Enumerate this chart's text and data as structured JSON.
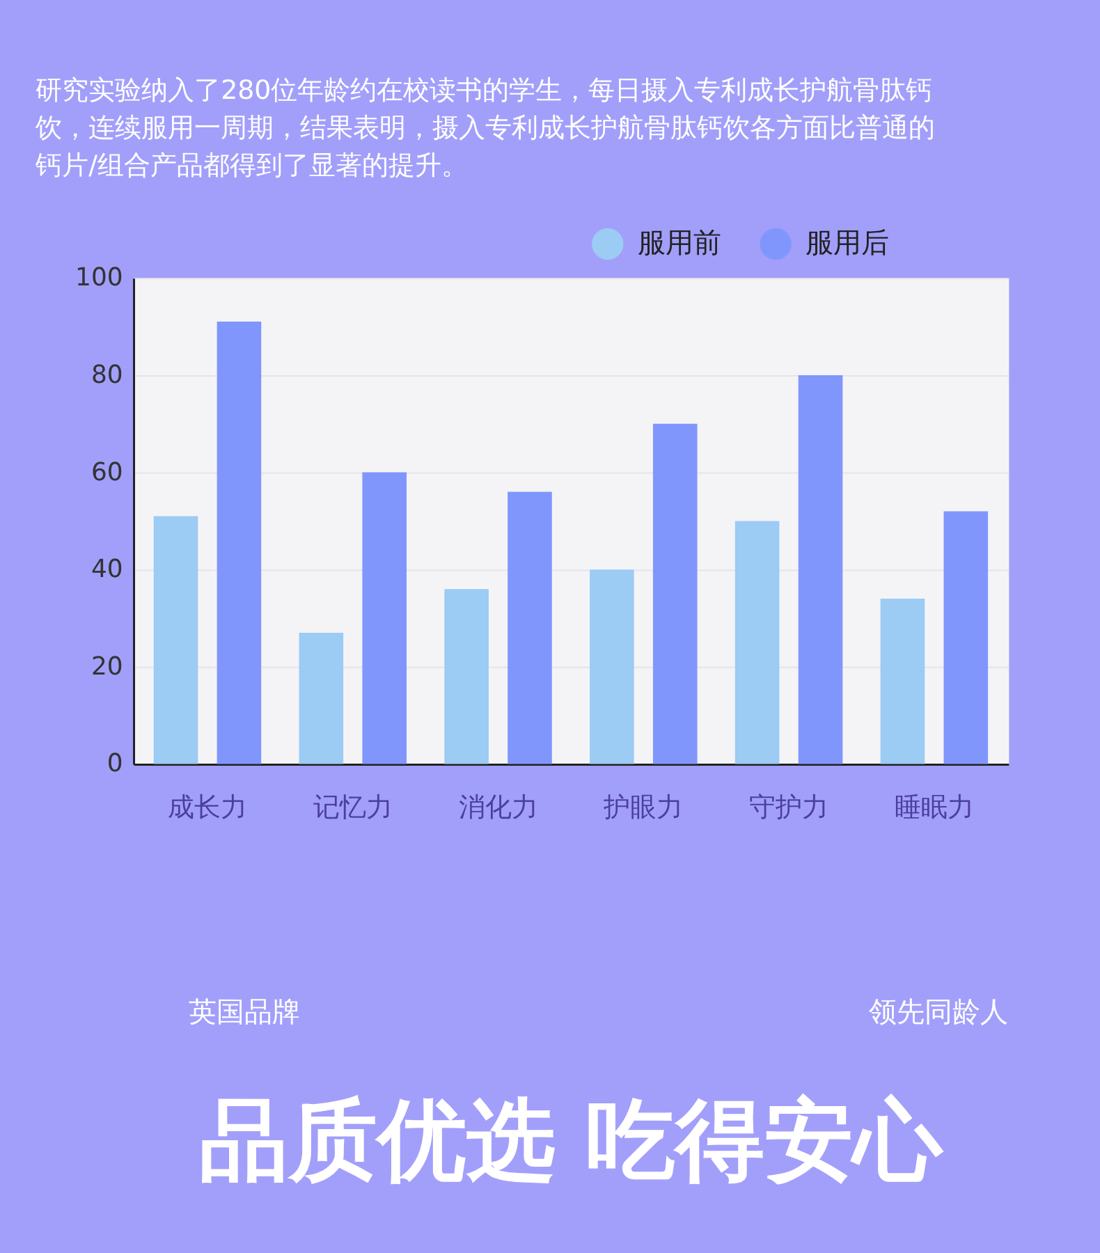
{
  "chart_data": {
    "type": "bar",
    "title": "研究实验纳入了280位年龄约在校读书的学生，每日摄入专利成长护航骨肽钙饮，连续服用一周期，结果表明，摄入专利成长护航骨肽钙饮各方面比普通的钙片/组合产品都得到了显著的提升。",
    "categories": [
      "成长力",
      "记忆力",
      "消化力",
      "护眼力",
      "守护力",
      "睡眠力"
    ],
    "series": [
      {
        "name": "服用前",
        "color": "#9ccbf4",
        "values": [
          51,
          27,
          36,
          40,
          50,
          34
        ]
      },
      {
        "name": "服用后",
        "color": "#8096fc",
        "values": [
          91,
          60,
          56,
          70,
          80,
          52
        ]
      }
    ],
    "ylim": [
      0,
      100
    ],
    "yticks": [
      0,
      20,
      40,
      60,
      80,
      100
    ],
    "grid": "y",
    "legend": "top right",
    "annotations": [
      "英国品牌",
      "领先同龄人",
      "品质优选 吃得安心"
    ]
  }
}
